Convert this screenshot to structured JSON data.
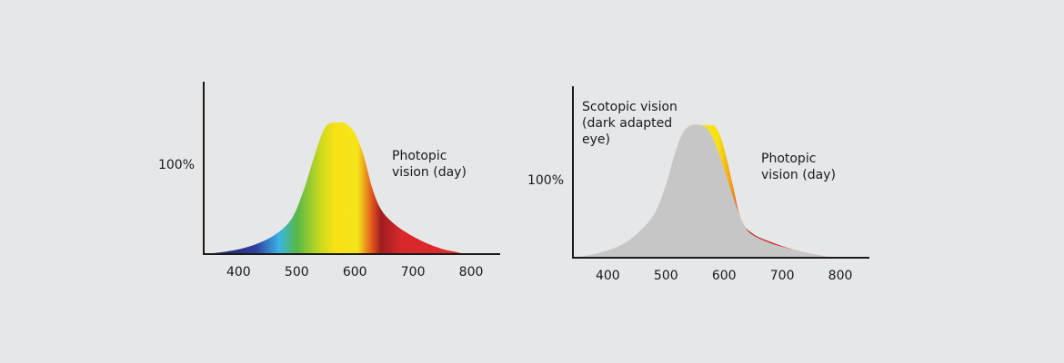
{
  "chart_data": [
    {
      "type": "area",
      "name": "",
      "xlim": [
        340,
        850
      ],
      "ylim": [
        0,
        100
      ],
      "x_ticks": [
        400,
        500,
        600,
        700,
        800
      ],
      "y_tick_label": "100%",
      "y_tick_value": 92,
      "series": [
        {
          "name": "",
          "fill": "spectrum",
          "x": [
            340,
            380,
            420,
            460,
            490,
            510,
            530,
            545,
            555,
            565,
            575,
            585,
            600,
            615,
            630,
            645,
            665,
            690,
            720,
            750,
            770,
            790
          ],
          "values": [
            0,
            2,
            6,
            14,
            26,
            46,
            74,
            93,
            99,
            100,
            100,
            99,
            92,
            75,
            50,
            34,
            24,
            16,
            9,
            4,
            2,
            0
          ]
        }
      ],
      "annotations": [
        {
          "text_lines": [
            "Photopic",
            "vision (day)"
          ],
          "anchor_x": 640,
          "anchor_y": 74
        }
      ],
      "colors": {
        "axis": "#1a1a1a",
        "spectrum_stops": [
          {
            "wl": 340,
            "color": "#1b1f5e"
          },
          {
            "wl": 430,
            "color": "#2f3f9e"
          },
          {
            "wl": 470,
            "color": "#3cb4e5"
          },
          {
            "wl": 500,
            "color": "#54b848"
          },
          {
            "wl": 540,
            "color": "#c8d81e"
          },
          {
            "wl": 565,
            "color": "#f7e214"
          },
          {
            "wl": 605,
            "color": "#f6e41b"
          },
          {
            "wl": 630,
            "color": "#e0541c"
          },
          {
            "wl": 645,
            "color": "#9e1d20"
          },
          {
            "wl": 680,
            "color": "#d8282a"
          },
          {
            "wl": 790,
            "color": "#e12a2f"
          }
        ]
      }
    },
    {
      "type": "area",
      "name": "",
      "xlim": [
        340,
        850
      ],
      "ylim": [
        0,
        100
      ],
      "x_ticks": [
        400,
        500,
        600,
        700,
        800
      ],
      "y_tick_label": "100%",
      "y_tick_value": 60,
      "series": [
        {
          "name": "",
          "fill": "spectrum",
          "x": [
            540,
            560,
            575,
            585,
            595,
            605,
            615,
            630,
            650,
            680,
            720,
            760,
            790
          ],
          "values": [
            100,
            100,
            100,
            99,
            90,
            74,
            55,
            28,
            18,
            12,
            6,
            2,
            0
          ]
        },
        {
          "name": "",
          "fill": "#c6c6c6",
          "x": [
            340,
            380,
            420,
            450,
            480,
            500,
            515,
            530,
            545,
            560,
            575,
            590,
            605,
            620,
            635,
            650,
            680,
            720,
            760,
            790
          ],
          "values": [
            0,
            3,
            9,
            18,
            33,
            55,
            78,
            95,
            100,
            100,
            95,
            80,
            60,
            40,
            24,
            17,
            11,
            6,
            2,
            0
          ]
        }
      ],
      "annotations": [
        {
          "text_lines": [
            "Scotopic vision",
            "(dark adapted",
            "eye)"
          ],
          "anchor_x": 356,
          "anchor_y": 118
        },
        {
          "text_lines": [
            "Photopic",
            "vision (day)"
          ],
          "anchor_x": 665,
          "anchor_y": 78
        }
      ],
      "colors": {
        "axis": "#1a1a1a",
        "spectrum_stops": [
          {
            "wl": 540,
            "color": "#f7e214"
          },
          {
            "wl": 590,
            "color": "#f7e214"
          },
          {
            "wl": 612,
            "color": "#f0a01a"
          },
          {
            "wl": 628,
            "color": "#e04a22"
          },
          {
            "wl": 650,
            "color": "#b51d22"
          },
          {
            "wl": 700,
            "color": "#d8262b"
          },
          {
            "wl": 790,
            "color": "#e12a2f"
          }
        ]
      }
    }
  ]
}
